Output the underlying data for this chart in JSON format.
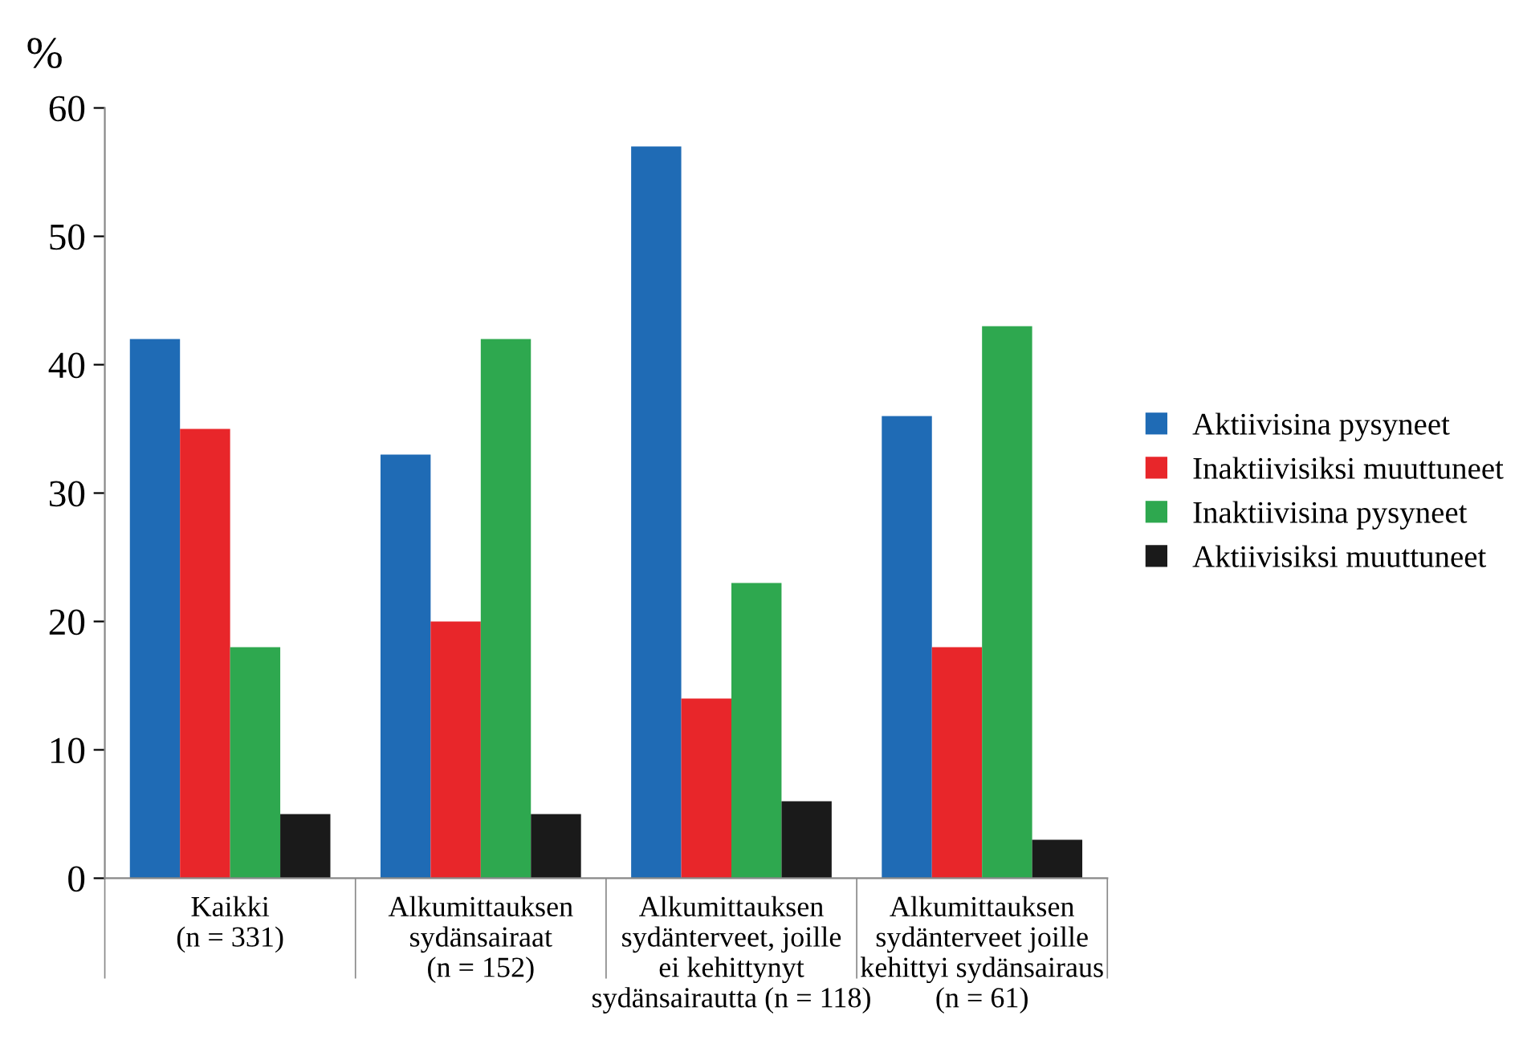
{
  "chart_data": {
    "type": "bar",
    "ylabel": "%",
    "categories": [
      "Kaikki\n(n = 331)",
      "Alkumittauksen\nsydänsairaat\n(n = 152)",
      "Alkumittauksen\nsydänterveet, joille\nei kehittynyt\nsydänsairautta (n = 118)",
      "Alkumittauksen\nsydänterveet joille\nkehittyi sydänsairaus\n(n = 61)"
    ],
    "series": [
      {
        "name": "Aktiivisina pysyneet",
        "color": "#1f6bb5",
        "values": [
          42,
          33,
          57,
          36
        ]
      },
      {
        "name": "Inaktiivisiksi muuttuneet",
        "color": "#e8262a",
        "values": [
          35,
          20,
          14,
          18
        ]
      },
      {
        "name": "Inaktiivisina pysyneet",
        "color": "#2ea84f",
        "values": [
          18,
          42,
          23,
          43
        ]
      },
      {
        "name": "Aktiivisiksi muuttuneet",
        "color": "#1a1a1a",
        "values": [
          5,
          5,
          6,
          3
        ]
      }
    ],
    "ylim": [
      0,
      60
    ],
    "yticks": [
      0,
      10,
      20,
      30,
      40,
      50,
      60
    ],
    "grid": false,
    "legend": "right"
  }
}
